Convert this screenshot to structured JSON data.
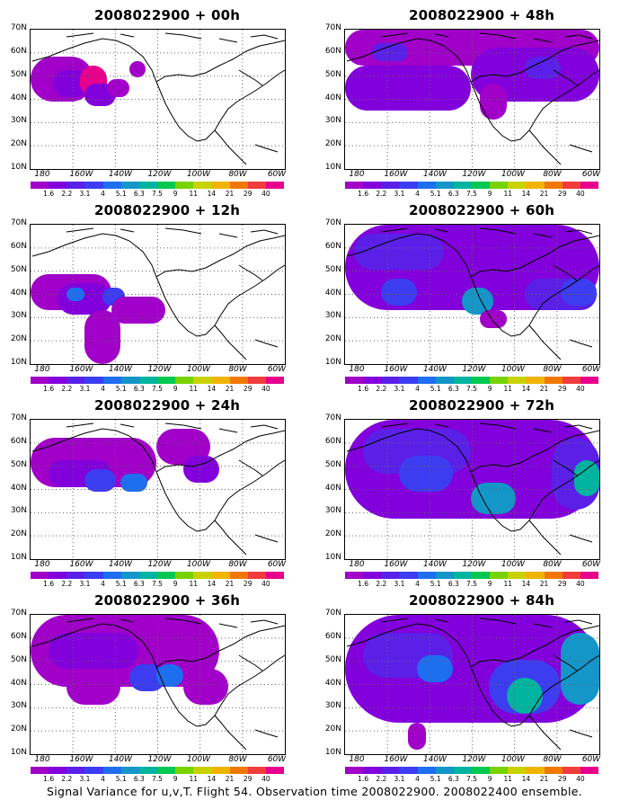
{
  "panels": [
    {
      "title": "2008022900 + 00h"
    },
    {
      "title": "2008022900 + 48h"
    },
    {
      "title": "2008022900 + 12h"
    },
    {
      "title": "2008022900 + 60h"
    },
    {
      "title": "2008022900 + 24h"
    },
    {
      "title": "2008022900 + 72h"
    },
    {
      "title": "2008022900 + 36h"
    },
    {
      "title": "2008022900 + 84h"
    }
  ],
  "lat_labels": [
    "70N",
    "60N",
    "50N",
    "40N",
    "30N",
    "20N",
    "10N"
  ],
  "lon_labels": [
    "180",
    "160W",
    "140W",
    "120W",
    "100W",
    "80W",
    "60W"
  ],
  "colorbar": {
    "labels": [
      "1.6",
      "2.2",
      "3.1",
      "4",
      "5.1",
      "6.3",
      "7.5",
      "9",
      "11",
      "14",
      "21",
      "29",
      "40"
    ],
    "colors": [
      "#a000c8",
      "#8200dc",
      "#5a20e8",
      "#3c3cf0",
      "#1e6ef0",
      "#1496c8",
      "#00b4a0",
      "#00c850",
      "#78d200",
      "#c8d200",
      "#f0b400",
      "#f07800",
      "#f03c3c",
      "#e6008c"
    ]
  },
  "footer": "Signal Variance for u,v,T. Flight 54. Observation time 2008022900. 2008022400 ensemble."
}
